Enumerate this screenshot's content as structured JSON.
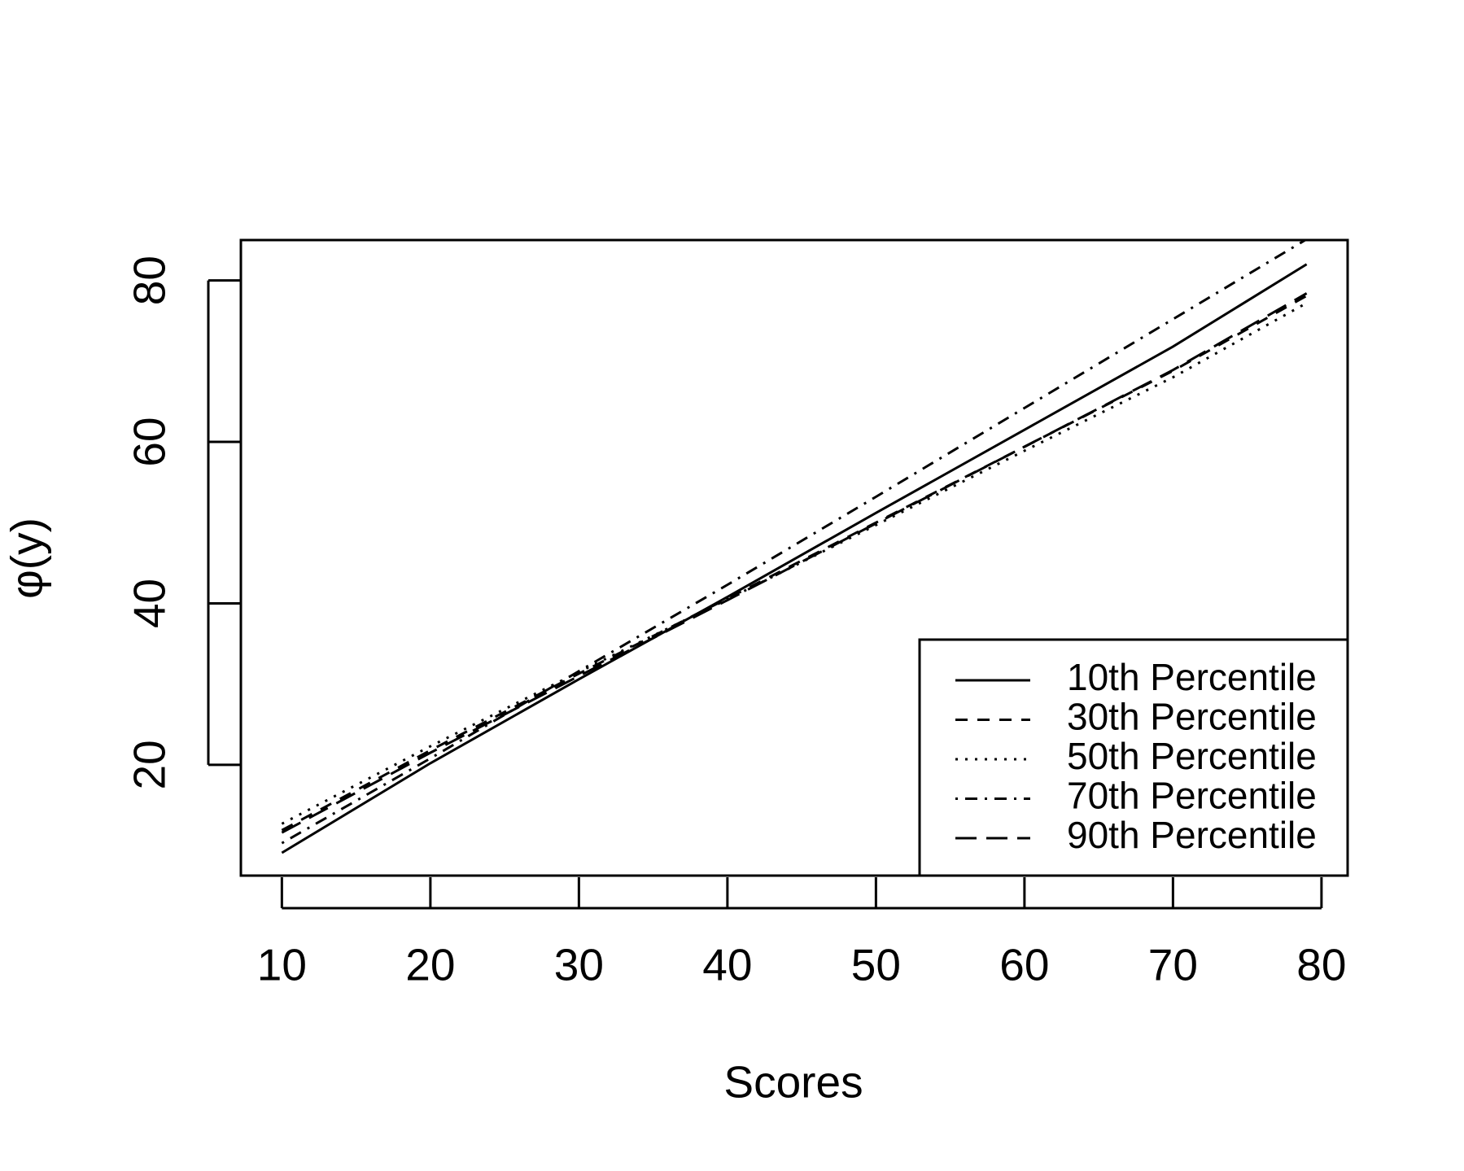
{
  "chart_data": {
    "type": "line",
    "x_label": "Scores",
    "y_label": "φ(y)",
    "x": [
      10,
      20,
      30,
      40,
      50,
      60,
      70,
      79
    ],
    "series": [
      {
        "name": "10th Percentile",
        "color": "#000000",
        "dash": "solid",
        "values": [
          9.1,
          20.2,
          30.6,
          40.8,
          51.2,
          61.5,
          71.8,
          82.0
        ]
      },
      {
        "name": "30th Percentile",
        "color": "#000000",
        "dash": "dashed",
        "values": [
          11.9,
          21.8,
          31.3,
          40.6,
          50.0,
          59.4,
          68.8,
          78.1
        ]
      },
      {
        "name": "50th Percentile",
        "color": "#000000",
        "dash": "dotted",
        "values": [
          12.7,
          22.3,
          31.5,
          40.5,
          49.7,
          58.9,
          68.0,
          77.2
        ]
      },
      {
        "name": "70th Percentile",
        "color": "#000000",
        "dash": "dotdash",
        "values": [
          10.3,
          20.8,
          31.6,
          42.3,
          53.2,
          64.2,
          75.2,
          85.1
        ]
      },
      {
        "name": "90th Percentile",
        "color": "#000000",
        "dash": "longdash",
        "values": [
          11.6,
          21.5,
          31.0,
          40.4,
          49.9,
          59.4,
          68.9,
          78.4
        ]
      }
    ],
    "xlim": [
      7.24,
      81.76
    ],
    "ylim": [
      6.28,
      85
    ],
    "xticks": [
      10,
      20,
      30,
      40,
      50,
      60,
      70,
      80
    ],
    "yticks": [
      20,
      40,
      60,
      80
    ],
    "grid": false,
    "legend_position": "bottom-right"
  }
}
